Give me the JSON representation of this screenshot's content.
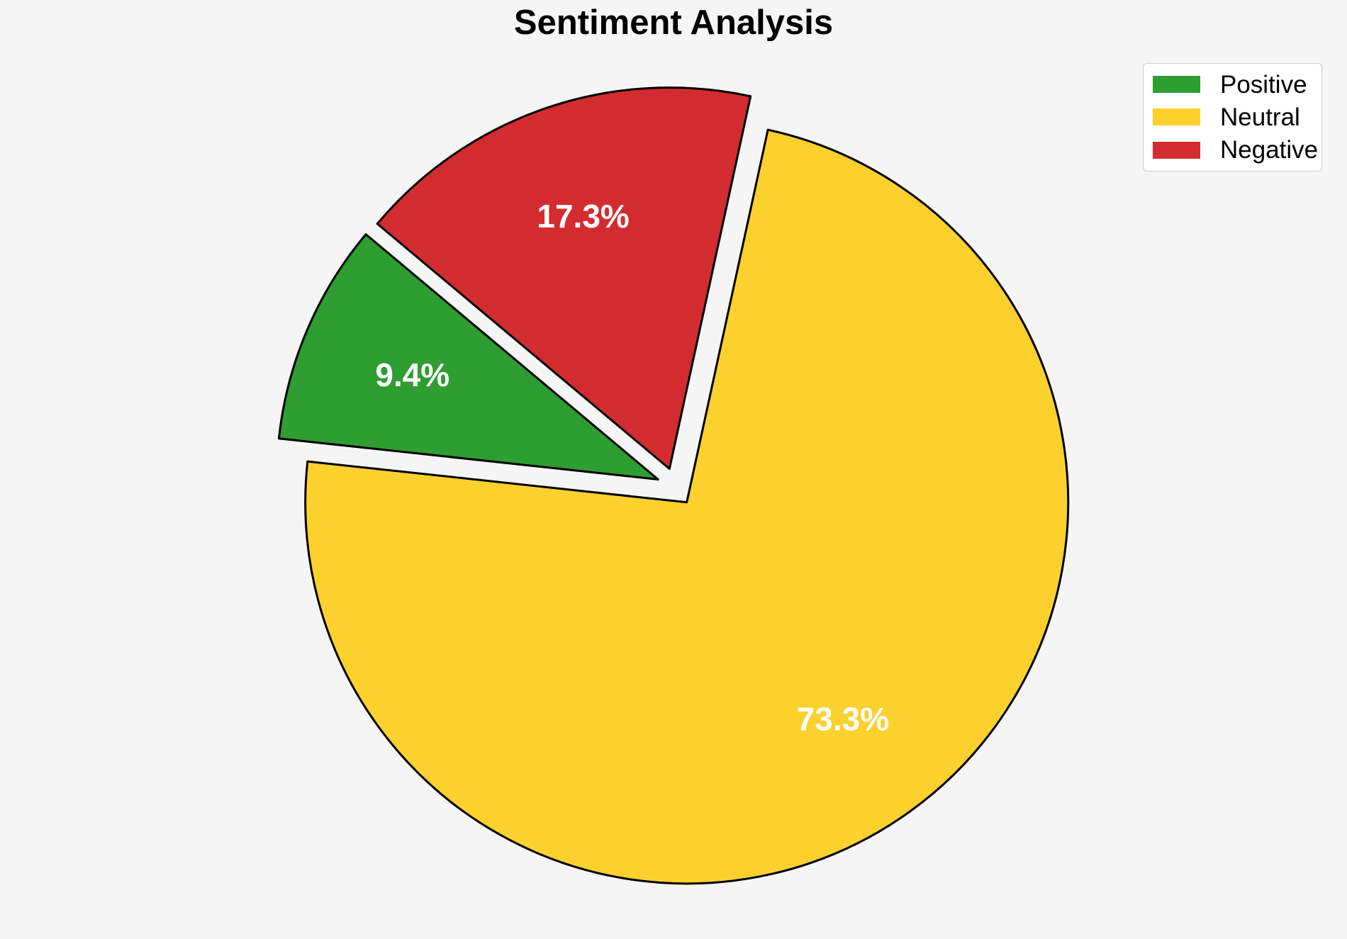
{
  "page": {
    "background": "#f5f5f5"
  },
  "chart_data": {
    "type": "pie",
    "title": "Sentiment Analysis",
    "labels": [
      "Positive",
      "Neutral",
      "Negative"
    ],
    "values": [
      9.4,
      73.3,
      17.3
    ],
    "pct_labels": [
      "9.4%",
      "73.3%",
      "17.3%"
    ],
    "colors": [
      "#2E9D32",
      "#FCD12E",
      "#D32C30"
    ],
    "startangle": 140,
    "counterclock": true,
    "explode": [
      0.05,
      0.05,
      0.05
    ],
    "pctdistance": 0.7,
    "pct_label_color": "#ffffff",
    "edge_color": "#000000",
    "legend_position": "upper right"
  }
}
